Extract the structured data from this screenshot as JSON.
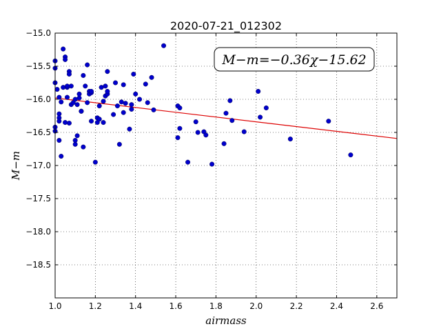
{
  "chart_data": {
    "type": "scatter",
    "title": "2020-07-21_012302",
    "xlabel": "airmass",
    "ylabel": "M−m",
    "xlim": [
      1.0,
      2.7
    ],
    "ylim": [
      -15.0,
      -19.0
    ],
    "y_inverted": true,
    "grid": true,
    "annotation": "M−m=−0.36χ−15.62",
    "x_ticks": [
      "1.0",
      "1.2",
      "1.4",
      "1.6",
      "1.8",
      "2.0",
      "2.2",
      "2.4",
      "2.6"
    ],
    "y_ticks": [
      "−15.0",
      "−15.5",
      "−16.0",
      "−16.5",
      "−17.0",
      "−17.5",
      "−18.0",
      "−18.5"
    ],
    "marker_color": "#0000cc",
    "fit_color": "#dd0000",
    "fit": {
      "slope": -0.36,
      "intercept": -15.62,
      "x_range": [
        1.0,
        2.7
      ]
    },
    "points": [
      [
        1.0,
        -15.42
      ],
      [
        1.0,
        -15.53
      ],
      [
        1.0,
        -15.75
      ],
      [
        1.0,
        -16.42
      ],
      [
        1.0,
        -16.48
      ],
      [
        1.01,
        -15.85
      ],
      [
        1.02,
        -16.62
      ],
      [
        1.02,
        -16.22
      ],
      [
        1.02,
        -16.28
      ],
      [
        1.02,
        -16.33
      ],
      [
        1.02,
        -15.97
      ],
      [
        1.03,
        -16.04
      ],
      [
        1.03,
        -16.86
      ],
      [
        1.04,
        -15.24
      ],
      [
        1.04,
        -15.82
      ],
      [
        1.05,
        -16.35
      ],
      [
        1.05,
        -15.36
      ],
      [
        1.05,
        -15.4
      ],
      [
        1.06,
        -15.82
      ],
      [
        1.06,
        -15.8
      ],
      [
        1.06,
        -15.97
      ],
      [
        1.07,
        -15.58
      ],
      [
        1.07,
        -15.62
      ],
      [
        1.07,
        -16.36
      ],
      [
        1.08,
        -15.8
      ],
      [
        1.08,
        -16.08
      ],
      [
        1.09,
        -16.05
      ],
      [
        1.1,
        -16.0
      ],
      [
        1.1,
        -16.62
      ],
      [
        1.1,
        -16.68
      ],
      [
        1.11,
        -16.55
      ],
      [
        1.11,
        -16.08
      ],
      [
        1.12,
        -15.98
      ],
      [
        1.12,
        -15.92
      ],
      [
        1.13,
        -16.18
      ],
      [
        1.13,
        -16.18
      ],
      [
        1.14,
        -15.64
      ],
      [
        1.14,
        -16.72
      ],
      [
        1.15,
        -15.8
      ],
      [
        1.16,
        -15.48
      ],
      [
        1.16,
        -16.05
      ],
      [
        1.17,
        -15.88
      ],
      [
        1.17,
        -15.92
      ],
      [
        1.18,
        -15.9
      ],
      [
        1.18,
        -15.88
      ],
      [
        1.18,
        -16.33
      ],
      [
        1.2,
        -16.95
      ],
      [
        1.21,
        -16.28
      ],
      [
        1.21,
        -16.35
      ],
      [
        1.22,
        -16.3
      ],
      [
        1.22,
        -16.1
      ],
      [
        1.23,
        -15.82
      ],
      [
        1.24,
        -16.03
      ],
      [
        1.24,
        -16.35
      ],
      [
        1.25,
        -15.8
      ],
      [
        1.25,
        -15.95
      ],
      [
        1.26,
        -15.92
      ],
      [
        1.26,
        -15.88
      ],
      [
        1.26,
        -15.58
      ],
      [
        1.29,
        -16.23
      ],
      [
        1.3,
        -15.75
      ],
      [
        1.31,
        -16.1
      ],
      [
        1.32,
        -16.68
      ],
      [
        1.33,
        -16.04
      ],
      [
        1.34,
        -15.78
      ],
      [
        1.34,
        -16.2
      ],
      [
        1.35,
        -16.06
      ],
      [
        1.37,
        -16.45
      ],
      [
        1.38,
        -16.15
      ],
      [
        1.38,
        -16.08
      ],
      [
        1.39,
        -15.62
      ],
      [
        1.4,
        -15.92
      ],
      [
        1.42,
        -16.0
      ],
      [
        1.45,
        -15.77
      ],
      [
        1.46,
        -16.05
      ],
      [
        1.48,
        -15.67
      ],
      [
        1.49,
        -16.16
      ],
      [
        1.54,
        -15.19
      ],
      [
        1.61,
        -16.1
      ],
      [
        1.61,
        -16.58
      ],
      [
        1.62,
        -16.44
      ],
      [
        1.62,
        -16.13
      ],
      [
        1.66,
        -16.95
      ],
      [
        1.7,
        -16.34
      ],
      [
        1.71,
        -16.5
      ],
      [
        1.74,
        -16.49
      ],
      [
        1.75,
        -16.54
      ],
      [
        1.78,
        -16.98
      ],
      [
        1.84,
        -16.67
      ],
      [
        1.85,
        -16.21
      ],
      [
        1.87,
        -16.02
      ],
      [
        1.88,
        -16.32
      ],
      [
        1.94,
        -16.49
      ],
      [
        2.01,
        -15.88
      ],
      [
        2.02,
        -16.27
      ],
      [
        2.05,
        -16.13
      ],
      [
        2.17,
        -16.6
      ],
      [
        2.36,
        -16.33
      ],
      [
        2.47,
        -16.84
      ]
    ]
  }
}
